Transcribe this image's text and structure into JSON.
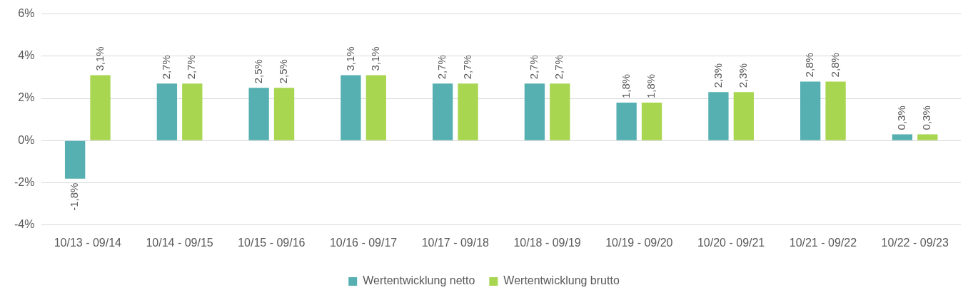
{
  "chart_data": {
    "type": "bar",
    "categories": [
      "10/13 - 09/14",
      "10/14 - 09/15",
      "10/15 - 09/16",
      "10/16 - 09/17",
      "10/17 - 09/18",
      "10/18 - 09/19",
      "10/19 - 09/20",
      "10/20 - 09/21",
      "10/21 - 09/22",
      "10/22 - 09/23"
    ],
    "series": [
      {
        "name": "Wertentwicklung netto",
        "color": "#56b0b1",
        "values": [
          -1.8,
          2.7,
          2.5,
          3.1,
          2.7,
          2.7,
          1.8,
          2.3,
          2.8,
          0.3
        ],
        "value_labels": [
          "-1,8%",
          "2,7%",
          "2,5%",
          "3,1%",
          "2,7%",
          "2,7%",
          "1,8%",
          "2,3%",
          "2,8%",
          "0,3%"
        ]
      },
      {
        "name": "Wertentwicklung brutto",
        "color": "#a9d651",
        "values": [
          3.1,
          2.7,
          2.5,
          3.1,
          2.7,
          2.7,
          1.8,
          2.3,
          2.8,
          0.3
        ],
        "value_labels": [
          "3,1%",
          "2,7%",
          "2,5%",
          "3,1%",
          "2,7%",
          "2,7%",
          "1,8%",
          "2,3%",
          "2,8%",
          "0,3%"
        ]
      }
    ],
    "ylim": [
      -4,
      6
    ],
    "yticks": [
      {
        "value": -4,
        "label": "-4%"
      },
      {
        "value": -2,
        "label": "-2%"
      },
      {
        "value": 0,
        "label": "0%"
      },
      {
        "value": 2,
        "label": "2%"
      },
      {
        "value": 4,
        "label": "4%"
      },
      {
        "value": 6,
        "label": "6%"
      }
    ],
    "grid": "y",
    "legend": "bottom"
  }
}
